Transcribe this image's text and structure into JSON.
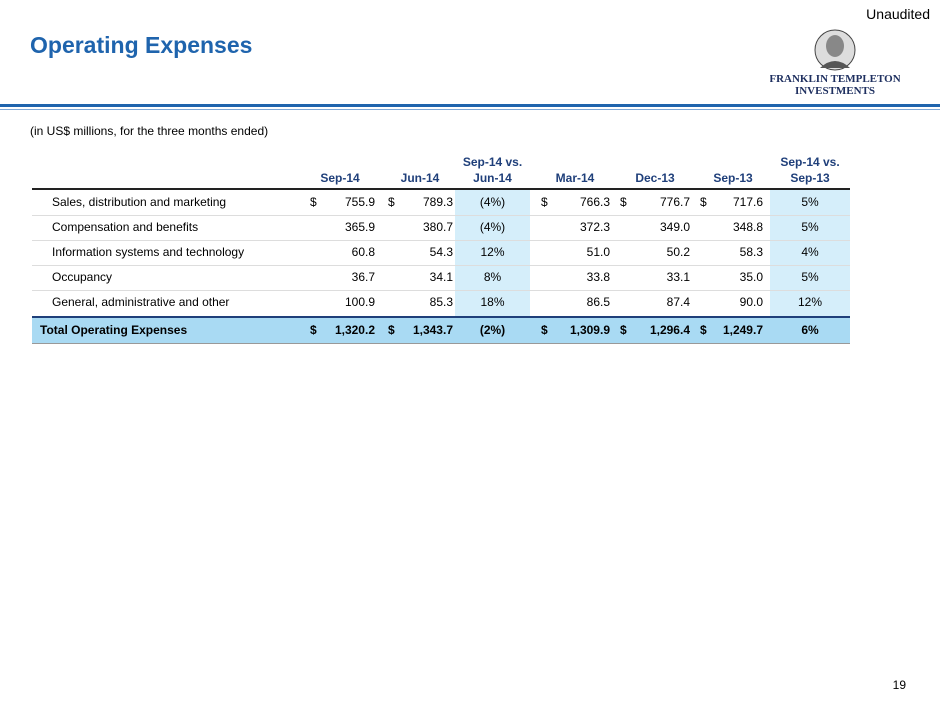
{
  "header": {
    "title": "Operating Expenses",
    "status": "Unaudited",
    "logo_line1": "FRANKLIN TEMPLETON",
    "logo_line2": "INVESTMENTS"
  },
  "subtitle": "(in US$ millions, for the three months ended)",
  "table": {
    "columns": [
      [
        "Sep-14"
      ],
      [
        "Jun-14"
      ],
      [
        "Sep-14 vs.",
        "Jun-14"
      ],
      [
        "Mar-14"
      ],
      [
        "Dec-13"
      ],
      [
        "Sep-13"
      ],
      [
        "Sep-14 vs.",
        "Sep-13"
      ]
    ],
    "rows": [
      {
        "label": "Sales, distribution and marketing",
        "currency": "$",
        "values": [
          "755.9",
          "789.3",
          "(4%)",
          "766.3",
          "776.7",
          "717.6",
          "5%"
        ]
      },
      {
        "label": "Compensation and benefits",
        "values": [
          "365.9",
          "380.7",
          "(4%)",
          "372.3",
          "349.0",
          "348.8",
          "5%"
        ]
      },
      {
        "label": "Information systems and technology",
        "values": [
          "60.8",
          "54.3",
          "12%",
          "51.0",
          "50.2",
          "58.3",
          "4%"
        ]
      },
      {
        "label": "Occupancy",
        "values": [
          "36.7",
          "34.1",
          "8%",
          "33.8",
          "33.1",
          "35.0",
          "5%"
        ]
      },
      {
        "label": "General, administrative and other",
        "values": [
          "100.9",
          "85.3",
          "18%",
          "86.5",
          "87.4",
          "90.0",
          "12%"
        ]
      }
    ],
    "total": {
      "label": "Total Operating Expenses",
      "currency": "$",
      "values": [
        "1,320.2",
        "1,343.7",
        "(2%)",
        "1,309.9",
        "1,296.4",
        "1,249.7",
        "6%"
      ]
    }
  },
  "page_number": "19"
}
